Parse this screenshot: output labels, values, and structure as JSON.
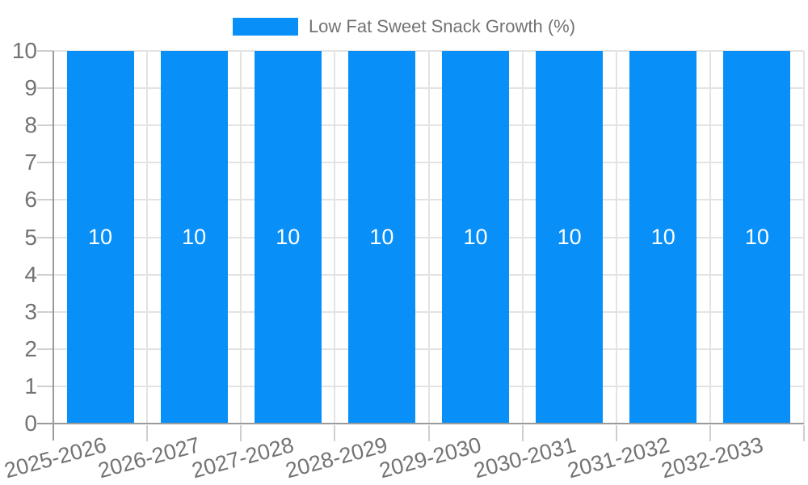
{
  "legend": {
    "label": "Low Fat Sweet Snack Growth (%)",
    "swatch_color": "#0890f8",
    "position": "top-center"
  },
  "chart_data": {
    "type": "bar",
    "title": "Low Fat Sweet Snack Growth (%)",
    "categories": [
      "2025-2026",
      "2026-2027",
      "2027-2028",
      "2028-2029",
      "2029-2030",
      "2030-2031",
      "2031-2032",
      "2032-2033"
    ],
    "series": [
      {
        "name": "Low Fat Sweet Snack Growth (%)",
        "values": [
          10,
          10,
          10,
          10,
          10,
          10,
          10,
          10
        ]
      }
    ],
    "bar_value_labels": [
      "10",
      "10",
      "10",
      "10",
      "10",
      "10",
      "10",
      "10"
    ],
    "xlabel": "",
    "ylabel": "",
    "ylim": [
      0,
      10
    ],
    "y_ticks": [
      0,
      1,
      2,
      3,
      4,
      5,
      6,
      7,
      8,
      9,
      10
    ],
    "grid": true,
    "legend_position": "top",
    "x_tick_rotation_deg": -15,
    "bar_color": "#0890f8",
    "bar_label_color": "#ffffff"
  },
  "colors": {
    "bar": "#0890f8",
    "axis_line": "#9a9a9a",
    "gridline": "#e3e3e3",
    "tick": "#cfcfcf",
    "label_text": "#737373",
    "bar_label": "#ffffff",
    "background": "#ffffff"
  }
}
